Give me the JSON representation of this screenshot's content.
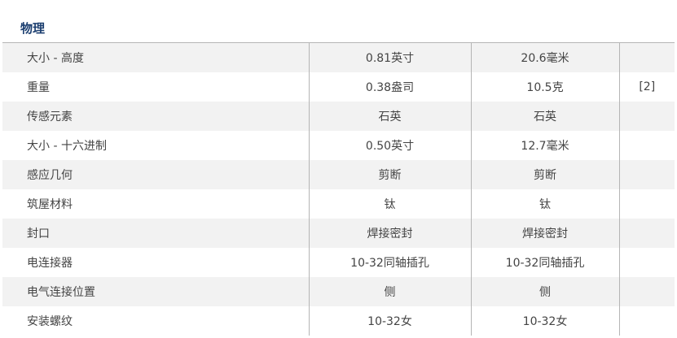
{
  "section_title": "物理",
  "rows": [
    {
      "label": "大小 - 高度",
      "english": "0.81英寸",
      "metric": "20.6毫米",
      "note": ""
    },
    {
      "label": "重量",
      "english": "0.38盎司",
      "metric": "10.5克",
      "note": "[2]"
    },
    {
      "label": "传感元素",
      "english": "石英",
      "metric": "石英",
      "note": ""
    },
    {
      "label": "大小 - 十六进制",
      "english": "0.50英寸",
      "metric": "12.7毫米",
      "note": ""
    },
    {
      "label": "感应几何",
      "english": "剪断",
      "metric": "剪断",
      "note": ""
    },
    {
      "label": "筑屋材料",
      "english": "钛",
      "metric": "钛",
      "note": ""
    },
    {
      "label": "封口",
      "english": "焊接密封",
      "metric": "焊接密封",
      "note": ""
    },
    {
      "label": "电连接器",
      "english": "10-32同轴插孔",
      "metric": "10-32同轴插孔",
      "note": ""
    },
    {
      "label": "电气连接位置",
      "english": "侧",
      "metric": "侧",
      "note": ""
    },
    {
      "label": "安装螺纹",
      "english": "10-32女",
      "metric": "10-32女",
      "note": ""
    }
  ]
}
